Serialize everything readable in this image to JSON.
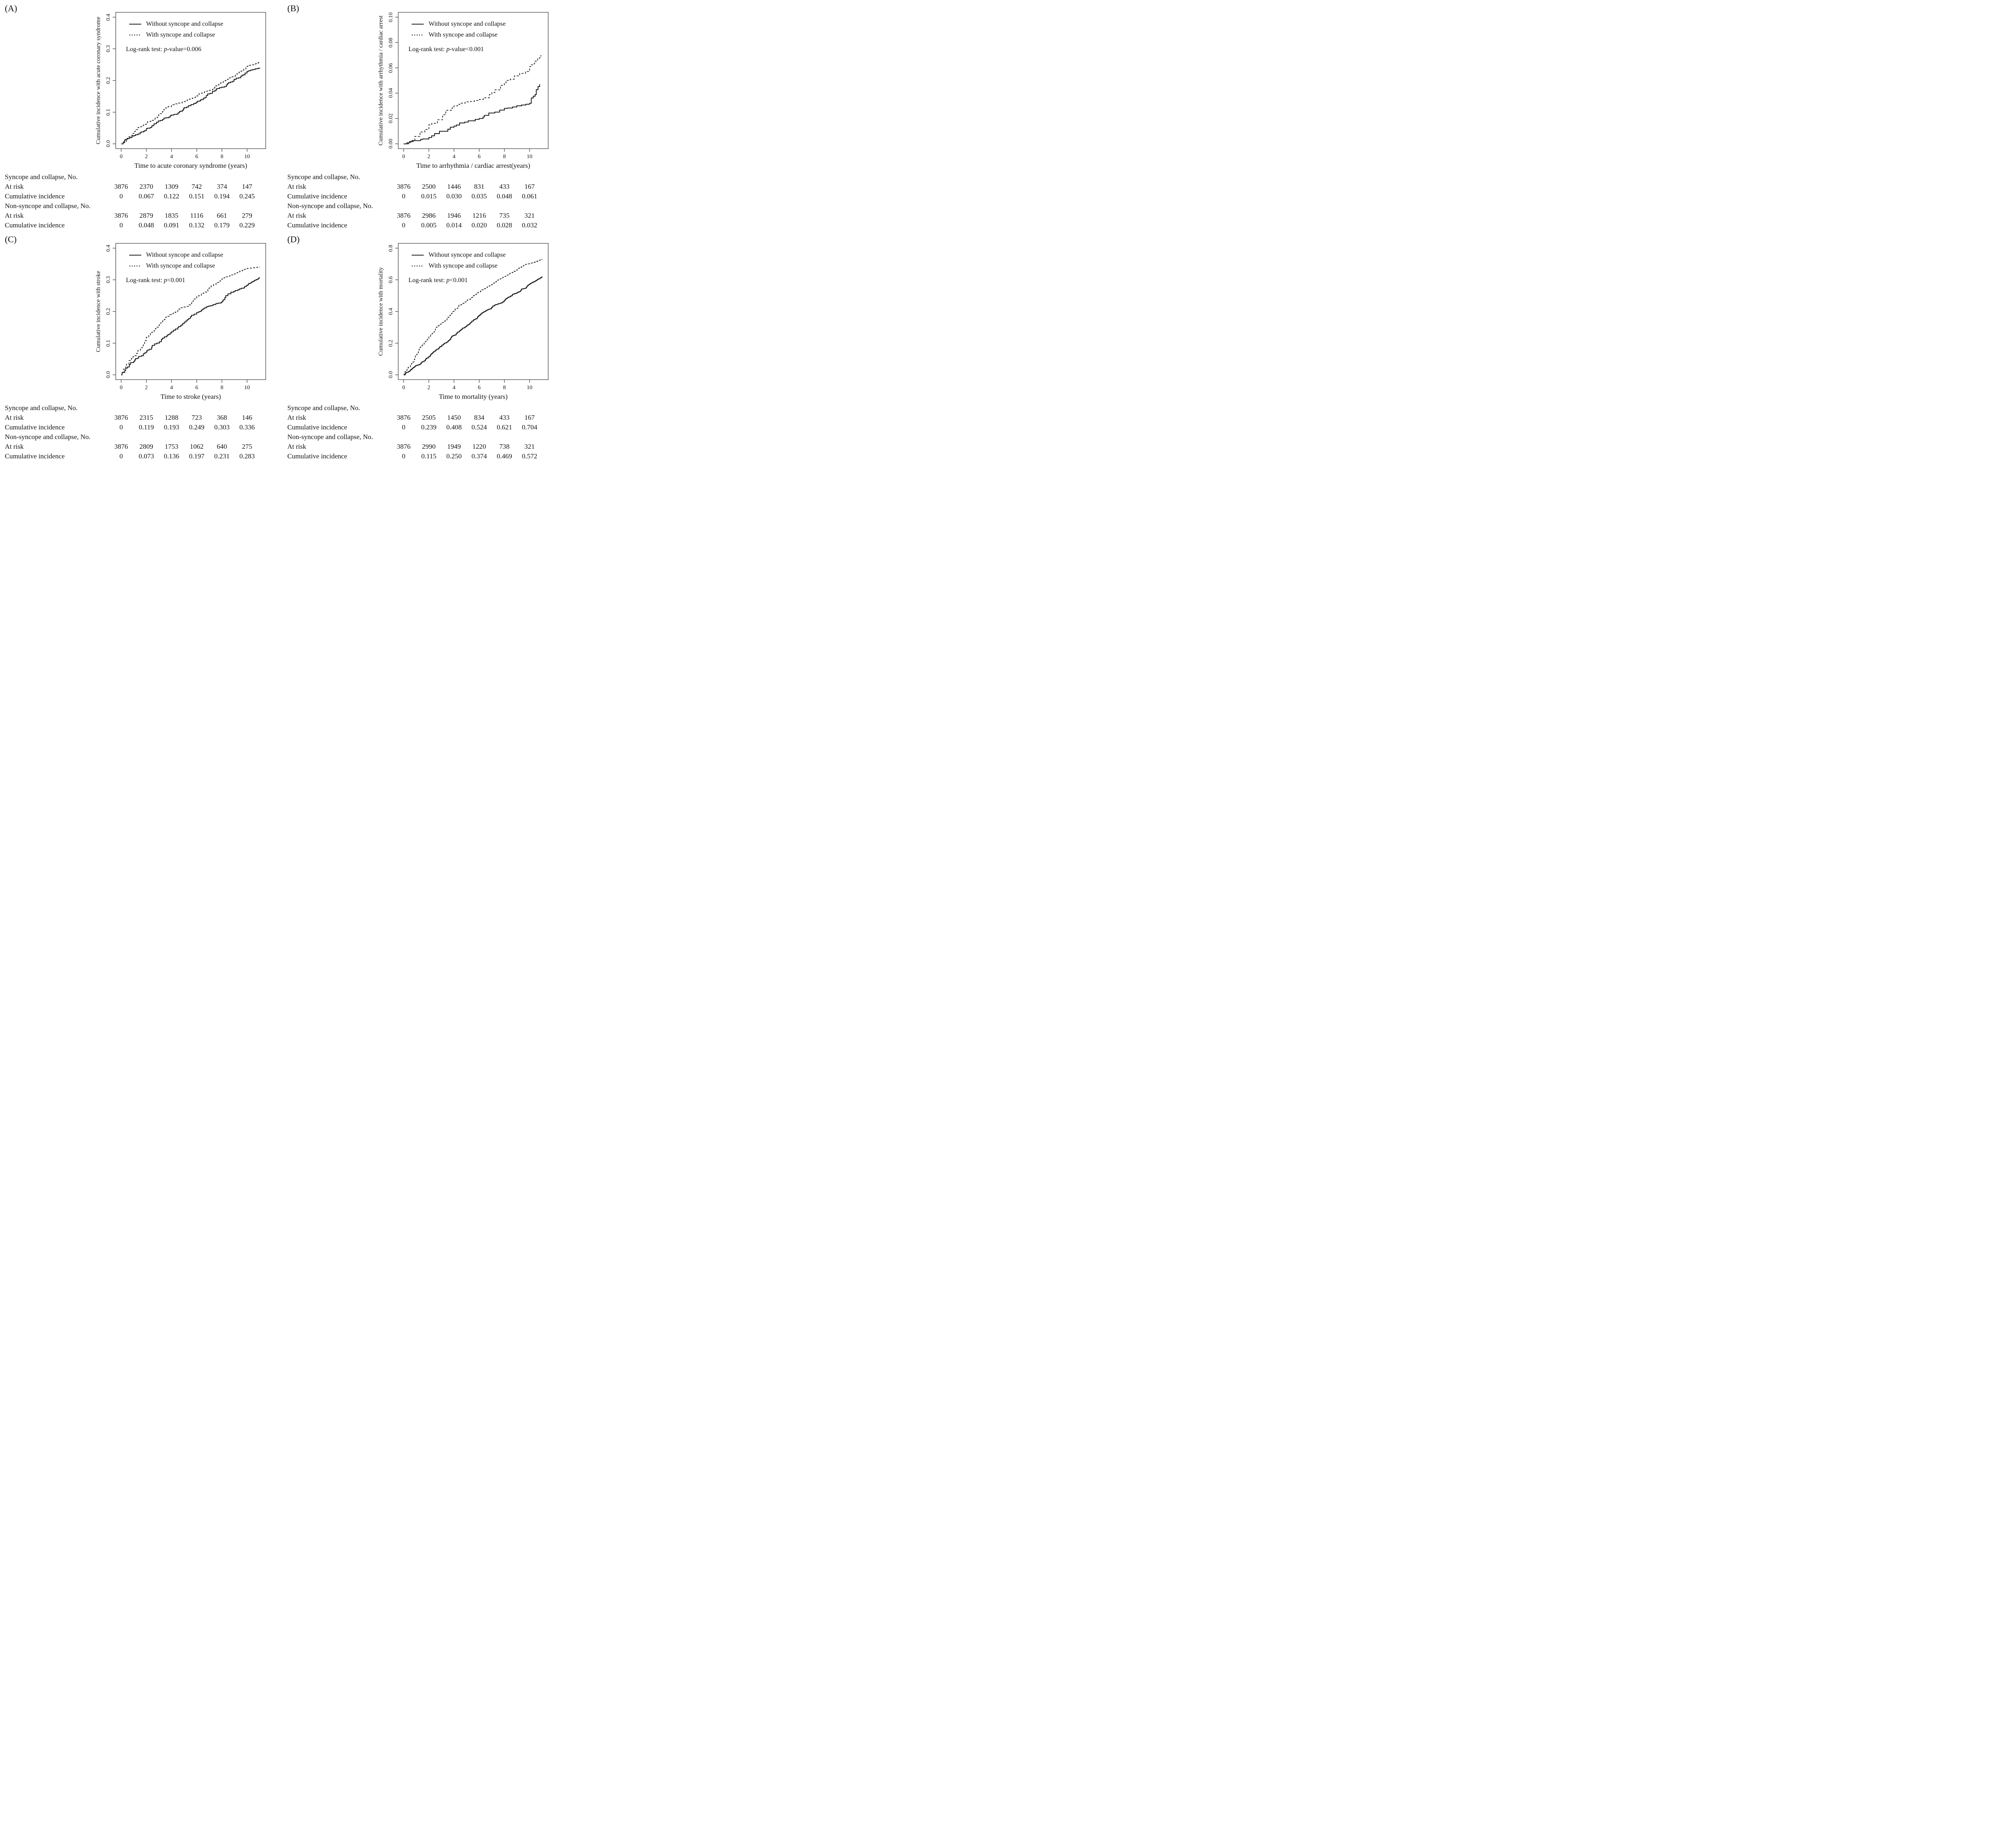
{
  "legend": {
    "without": "Without syncope and collapse",
    "with": "With syncope and collapse"
  },
  "labels": {
    "at_risk": "At risk",
    "cumulative": "Cumulative incidence"
  },
  "panels": [
    {
      "panel_label": "(A)",
      "ylabel": "Cumulative incidence with acute coronary syndrome",
      "xlabel": "Time to acute coronary syndrome (years)",
      "logrank": {
        "prefix": "Log-rank test: ",
        "p": "p",
        "suffix": "-value=0.006"
      },
      "x_tick_labels": [
        "0",
        "2",
        "4",
        "6",
        "8",
        "10"
      ],
      "y_tick_labels": [
        "0.0",
        "0.1",
        "0.2",
        "0.3",
        "0.4"
      ],
      "table": {
        "groups": [
          {
            "header": "Syncope and collapse, No.",
            "at_risk": [
              "3876",
              "2370",
              "1309",
              "742",
              "374",
              "147"
            ],
            "cum": [
              "0",
              "0.067",
              "0.122",
              "0.151",
              "0.194",
              "0.245"
            ]
          },
          {
            "header": "Non-syncope and collapse, No.",
            "at_risk": [
              "3876",
              "2879",
              "1835",
              "1116",
              "661",
              "279"
            ],
            "cum": [
              "0",
              "0.048",
              "0.091",
              "0.132",
              "0.179",
              "0.229"
            ]
          }
        ]
      }
    },
    {
      "panel_label": "(B)",
      "ylabel": "Cumulative incidence with arrhythmia / cardiac arrest",
      "xlabel": "Time to arrhythmia / cardiac arrest(years)",
      "logrank": {
        "prefix": "Log-rank test: ",
        "p": "p",
        "suffix": "-value<0.001"
      },
      "x_tick_labels": [
        "0",
        "2",
        "4",
        "6",
        "8",
        "10"
      ],
      "y_tick_labels": [
        "0.00",
        "0.02",
        "0.04",
        "0.06",
        "0.08",
        "0.10"
      ],
      "table": {
        "groups": [
          {
            "header": "Syncope and collapse, No.",
            "at_risk": [
              "3876",
              "2500",
              "1446",
              "831",
              "433",
              "167"
            ],
            "cum": [
              "0",
              "0.015",
              "0.030",
              "0.035",
              "0.048",
              "0.061"
            ]
          },
          {
            "header": "Non-syncope and collapse, No.",
            "at_risk": [
              "3876",
              "2986",
              "1946",
              "1216",
              "735",
              "321"
            ],
            "cum": [
              "0",
              "0.005",
              "0.014",
              "0.020",
              "0.028",
              "0.032"
            ]
          }
        ]
      }
    },
    {
      "panel_label": "(C)",
      "ylabel": "Cumulative incidence with stroke",
      "xlabel": "Time to stroke (years)",
      "logrank": {
        "prefix": "Log-rank test: ",
        "p": "p",
        "suffix": "<0.001"
      },
      "x_tick_labels": [
        "0",
        "2",
        "4",
        "6",
        "8",
        "10"
      ],
      "y_tick_labels": [
        "0.0",
        "0.1",
        "0.2",
        "0.3",
        "0.4"
      ],
      "table": {
        "groups": [
          {
            "header": "Syncope and collapse, No.",
            "at_risk": [
              "3876",
              "2315",
              "1288",
              "723",
              "368",
              "146"
            ],
            "cum": [
              "0",
              "0.119",
              "0.193",
              "0.249",
              "0.303",
              "0.336"
            ]
          },
          {
            "header": "Non-syncope and collapse, No.",
            "at_risk": [
              "3876",
              "2809",
              "1753",
              "1062",
              "640",
              "275"
            ],
            "cum": [
              "0",
              "0.073",
              "0.136",
              "0.197",
              "0.231",
              "0.283"
            ]
          }
        ]
      }
    },
    {
      "panel_label": "(D)",
      "ylabel": "Cumulative incidence with mortality",
      "xlabel": "Time to mortality (years)",
      "logrank": {
        "prefix": "Log-rank test: ",
        "p": "p",
        "suffix": "<0.001"
      },
      "x_tick_labels": [
        "0",
        "2",
        "4",
        "6",
        "8",
        "10"
      ],
      "y_tick_labels": [
        "0.0",
        "0.2",
        "0.4",
        "0.6",
        "0.8"
      ],
      "table": {
        "groups": [
          {
            "header": "Syncope and collapse, No.",
            "at_risk": [
              "3876",
              "2505",
              "1450",
              "834",
              "433",
              "167"
            ],
            "cum": [
              "0",
              "0.239",
              "0.408",
              "0.524",
              "0.621",
              "0.704"
            ]
          },
          {
            "header": "Non-syncope and collapse, No.",
            "at_risk": [
              "3876",
              "2990",
              "1949",
              "1220",
              "738",
              "321"
            ],
            "cum": [
              "0",
              "0.115",
              "0.250",
              "0.374",
              "0.469",
              "0.572"
            ]
          }
        ]
      }
    }
  ],
  "chart_data": [
    {
      "panel": "A",
      "type": "line",
      "subtype": "kaplan-meier-step",
      "title": "",
      "xlabel": "Time to acute coronary syndrome (years)",
      "ylabel": "Cumulative incidence with acute coronary syndrome",
      "xlim": [
        0,
        11
      ],
      "ylim": [
        0,
        0.4
      ],
      "x_ticks": [
        0,
        2,
        4,
        6,
        8,
        10
      ],
      "y_ticks": [
        0.0,
        0.1,
        0.2,
        0.3,
        0.4
      ],
      "grid": false,
      "legend_position": "top-left",
      "annotation": "Log-rank test: p-value=0.006",
      "series": [
        {
          "name": "Without syncope and collapse",
          "style": "solid",
          "x": [
            0,
            2,
            4,
            6,
            8,
            10,
            11
          ],
          "y": [
            0,
            0.048,
            0.091,
            0.132,
            0.179,
            0.229,
            0.24
          ]
        },
        {
          "name": "With syncope and collapse",
          "style": "dashed",
          "x": [
            0,
            2,
            4,
            6,
            8,
            10,
            11
          ],
          "y": [
            0,
            0.067,
            0.122,
            0.151,
            0.194,
            0.245,
            0.258
          ]
        }
      ],
      "step_hint": 14
    },
    {
      "panel": "B",
      "type": "line",
      "subtype": "kaplan-meier-step",
      "title": "",
      "xlabel": "Time to arrhythmia / cardiac arrest(years)",
      "ylabel": "Cumulative incidence with arrhythmia / cardiac arrest",
      "xlim": [
        0,
        11
      ],
      "ylim": [
        0,
        0.1
      ],
      "x_ticks": [
        0,
        2,
        4,
        6,
        8,
        10
      ],
      "y_ticks": [
        0.0,
        0.02,
        0.04,
        0.06,
        0.08,
        0.1
      ],
      "grid": false,
      "legend_position": "top-left",
      "annotation": "Log-rank test: p-value<0.001",
      "series": [
        {
          "name": "Without syncope and collapse",
          "style": "solid",
          "x": [
            0,
            2,
            4,
            6,
            8,
            10,
            10.8
          ],
          "y": [
            0,
            0.005,
            0.014,
            0.02,
            0.028,
            0.032,
            0.047
          ]
        },
        {
          "name": "With syncope and collapse",
          "style": "dashed",
          "x": [
            0,
            2,
            4,
            6,
            8,
            10,
            10.9
          ],
          "y": [
            0,
            0.015,
            0.03,
            0.035,
            0.048,
            0.061,
            0.07
          ]
        }
      ],
      "step_hint": 6
    },
    {
      "panel": "C",
      "type": "line",
      "subtype": "kaplan-meier-step",
      "title": "",
      "xlabel": "Time to stroke (years)",
      "ylabel": "Cumulative incidence with stroke",
      "xlim": [
        0,
        11
      ],
      "ylim": [
        0,
        0.4
      ],
      "x_ticks": [
        0,
        2,
        4,
        6,
        8,
        10
      ],
      "y_ticks": [
        0.0,
        0.1,
        0.2,
        0.3,
        0.4
      ],
      "grid": false,
      "legend_position": "top-left",
      "annotation": "Log-rank test: p<0.001",
      "series": [
        {
          "name": "Without syncope and collapse",
          "style": "solid",
          "x": [
            0,
            2,
            4,
            6,
            8,
            10,
            11
          ],
          "y": [
            0,
            0.073,
            0.136,
            0.197,
            0.231,
            0.283,
            0.307
          ]
        },
        {
          "name": "With syncope and collapse",
          "style": "dashed",
          "x": [
            0,
            2,
            4,
            6,
            8,
            10,
            11
          ],
          "y": [
            0,
            0.119,
            0.193,
            0.249,
            0.303,
            0.336,
            0.341
          ]
        }
      ],
      "step_hint": 15
    },
    {
      "panel": "D",
      "type": "line",
      "subtype": "kaplan-meier-step",
      "title": "",
      "xlabel": "Time to mortality (years)",
      "ylabel": "Cumulative incidence with mortality",
      "xlim": [
        0,
        11
      ],
      "ylim": [
        0,
        0.8
      ],
      "x_ticks": [
        0,
        2,
        4,
        6,
        8,
        10
      ],
      "y_ticks": [
        0.0,
        0.2,
        0.4,
        0.6,
        0.8
      ],
      "grid": false,
      "legend_position": "top-left",
      "annotation": "Log-rank test: p<0.001",
      "series": [
        {
          "name": "Without syncope and collapse",
          "style": "solid",
          "x": [
            0,
            2,
            4,
            6,
            8,
            10,
            11
          ],
          "y": [
            0,
            0.115,
            0.25,
            0.374,
            0.469,
            0.572,
            0.62
          ]
        },
        {
          "name": "With syncope and collapse",
          "style": "dashed",
          "x": [
            0,
            2,
            4,
            6,
            8,
            10,
            11
          ],
          "y": [
            0,
            0.239,
            0.408,
            0.524,
            0.621,
            0.704,
            0.73
          ]
        }
      ],
      "step_hint": 26
    }
  ]
}
